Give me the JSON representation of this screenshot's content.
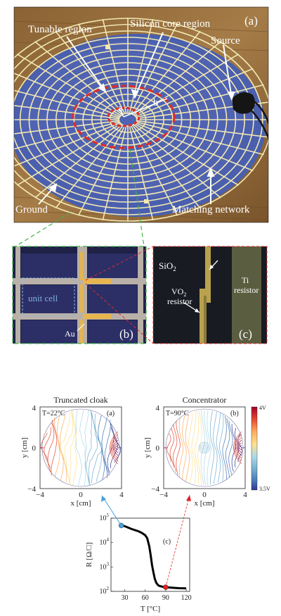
{
  "photo_a": {
    "panel_label": "(a)",
    "callouts": {
      "tunable_region": "Tunable region",
      "silicon_core_region": "Silicon core region",
      "source": "Source",
      "ground": "Ground",
      "matching_network": "Matching network",
      "radius_a": "a",
      "radius_b": "b"
    }
  },
  "photo_b": {
    "panel_label": "(b)",
    "unit_cell": "unit cell",
    "gold": "Au"
  },
  "photo_c": {
    "panel_label": "(c)",
    "oxide": "SiO",
    "oxide_sub": "2",
    "vo2_line1_base": "VO",
    "vo2_line1_sub": "2",
    "vo2_line2": "resistor",
    "ti_line1": "Ti",
    "ti_line2": "resistor"
  },
  "contour_left": {
    "title": "Truncated cloak",
    "panel_label": "(a)",
    "temperature": "T=22°C",
    "xlabel": "x [cm]",
    "ylabel": "y [cm]",
    "xticks": [
      "−4",
      "0",
      "4"
    ],
    "yticks": [
      "4",
      "0",
      "−4"
    ]
  },
  "contour_right": {
    "title": "Concentrator",
    "panel_label": "(b)",
    "temperature": "T=90°C",
    "xlabel": "x [cm]",
    "ylabel": "y [cm]",
    "xticks": [
      "−4",
      "0",
      "4"
    ],
    "yticks": [
      "4",
      "0",
      "−4"
    ]
  },
  "colorbar": {
    "top_label": "4V",
    "bottom_label": "3.5V",
    "colors": [
      "#a50026",
      "#e34a33",
      "#fdae61",
      "#fee090",
      "#abd9e9",
      "#74add1",
      "#4575b4",
      "#313695"
    ]
  },
  "chart_data": {
    "type": "line",
    "panel_label": "(c)",
    "xlabel": "T [°C]",
    "ylabel": "R [Ω/□]",
    "ylog": true,
    "xlim": [
      10,
      125
    ],
    "ylim_exp": [
      2,
      5
    ],
    "xticks": [
      "30",
      "60",
      "90",
      "120"
    ],
    "yticks_exp": [
      "2",
      "3",
      "4",
      "5"
    ],
    "x": [
      25,
      30,
      40,
      50,
      55,
      60,
      63,
      66,
      68,
      70,
      72,
      74,
      76,
      78,
      80,
      85,
      90,
      100,
      110,
      120
    ],
    "y": [
      50000,
      47000,
      36000,
      29000,
      25000,
      20000,
      15000,
      7000,
      3000,
      1200,
      600,
      330,
      230,
      190,
      170,
      155,
      148,
      140,
      135,
      133
    ],
    "markers": [
      {
        "x": 25,
        "y": 50000,
        "color": "#4a9fd8"
      },
      {
        "x": 90,
        "y": 148,
        "color": "#e01f26"
      }
    ],
    "line_color": "#000000"
  }
}
